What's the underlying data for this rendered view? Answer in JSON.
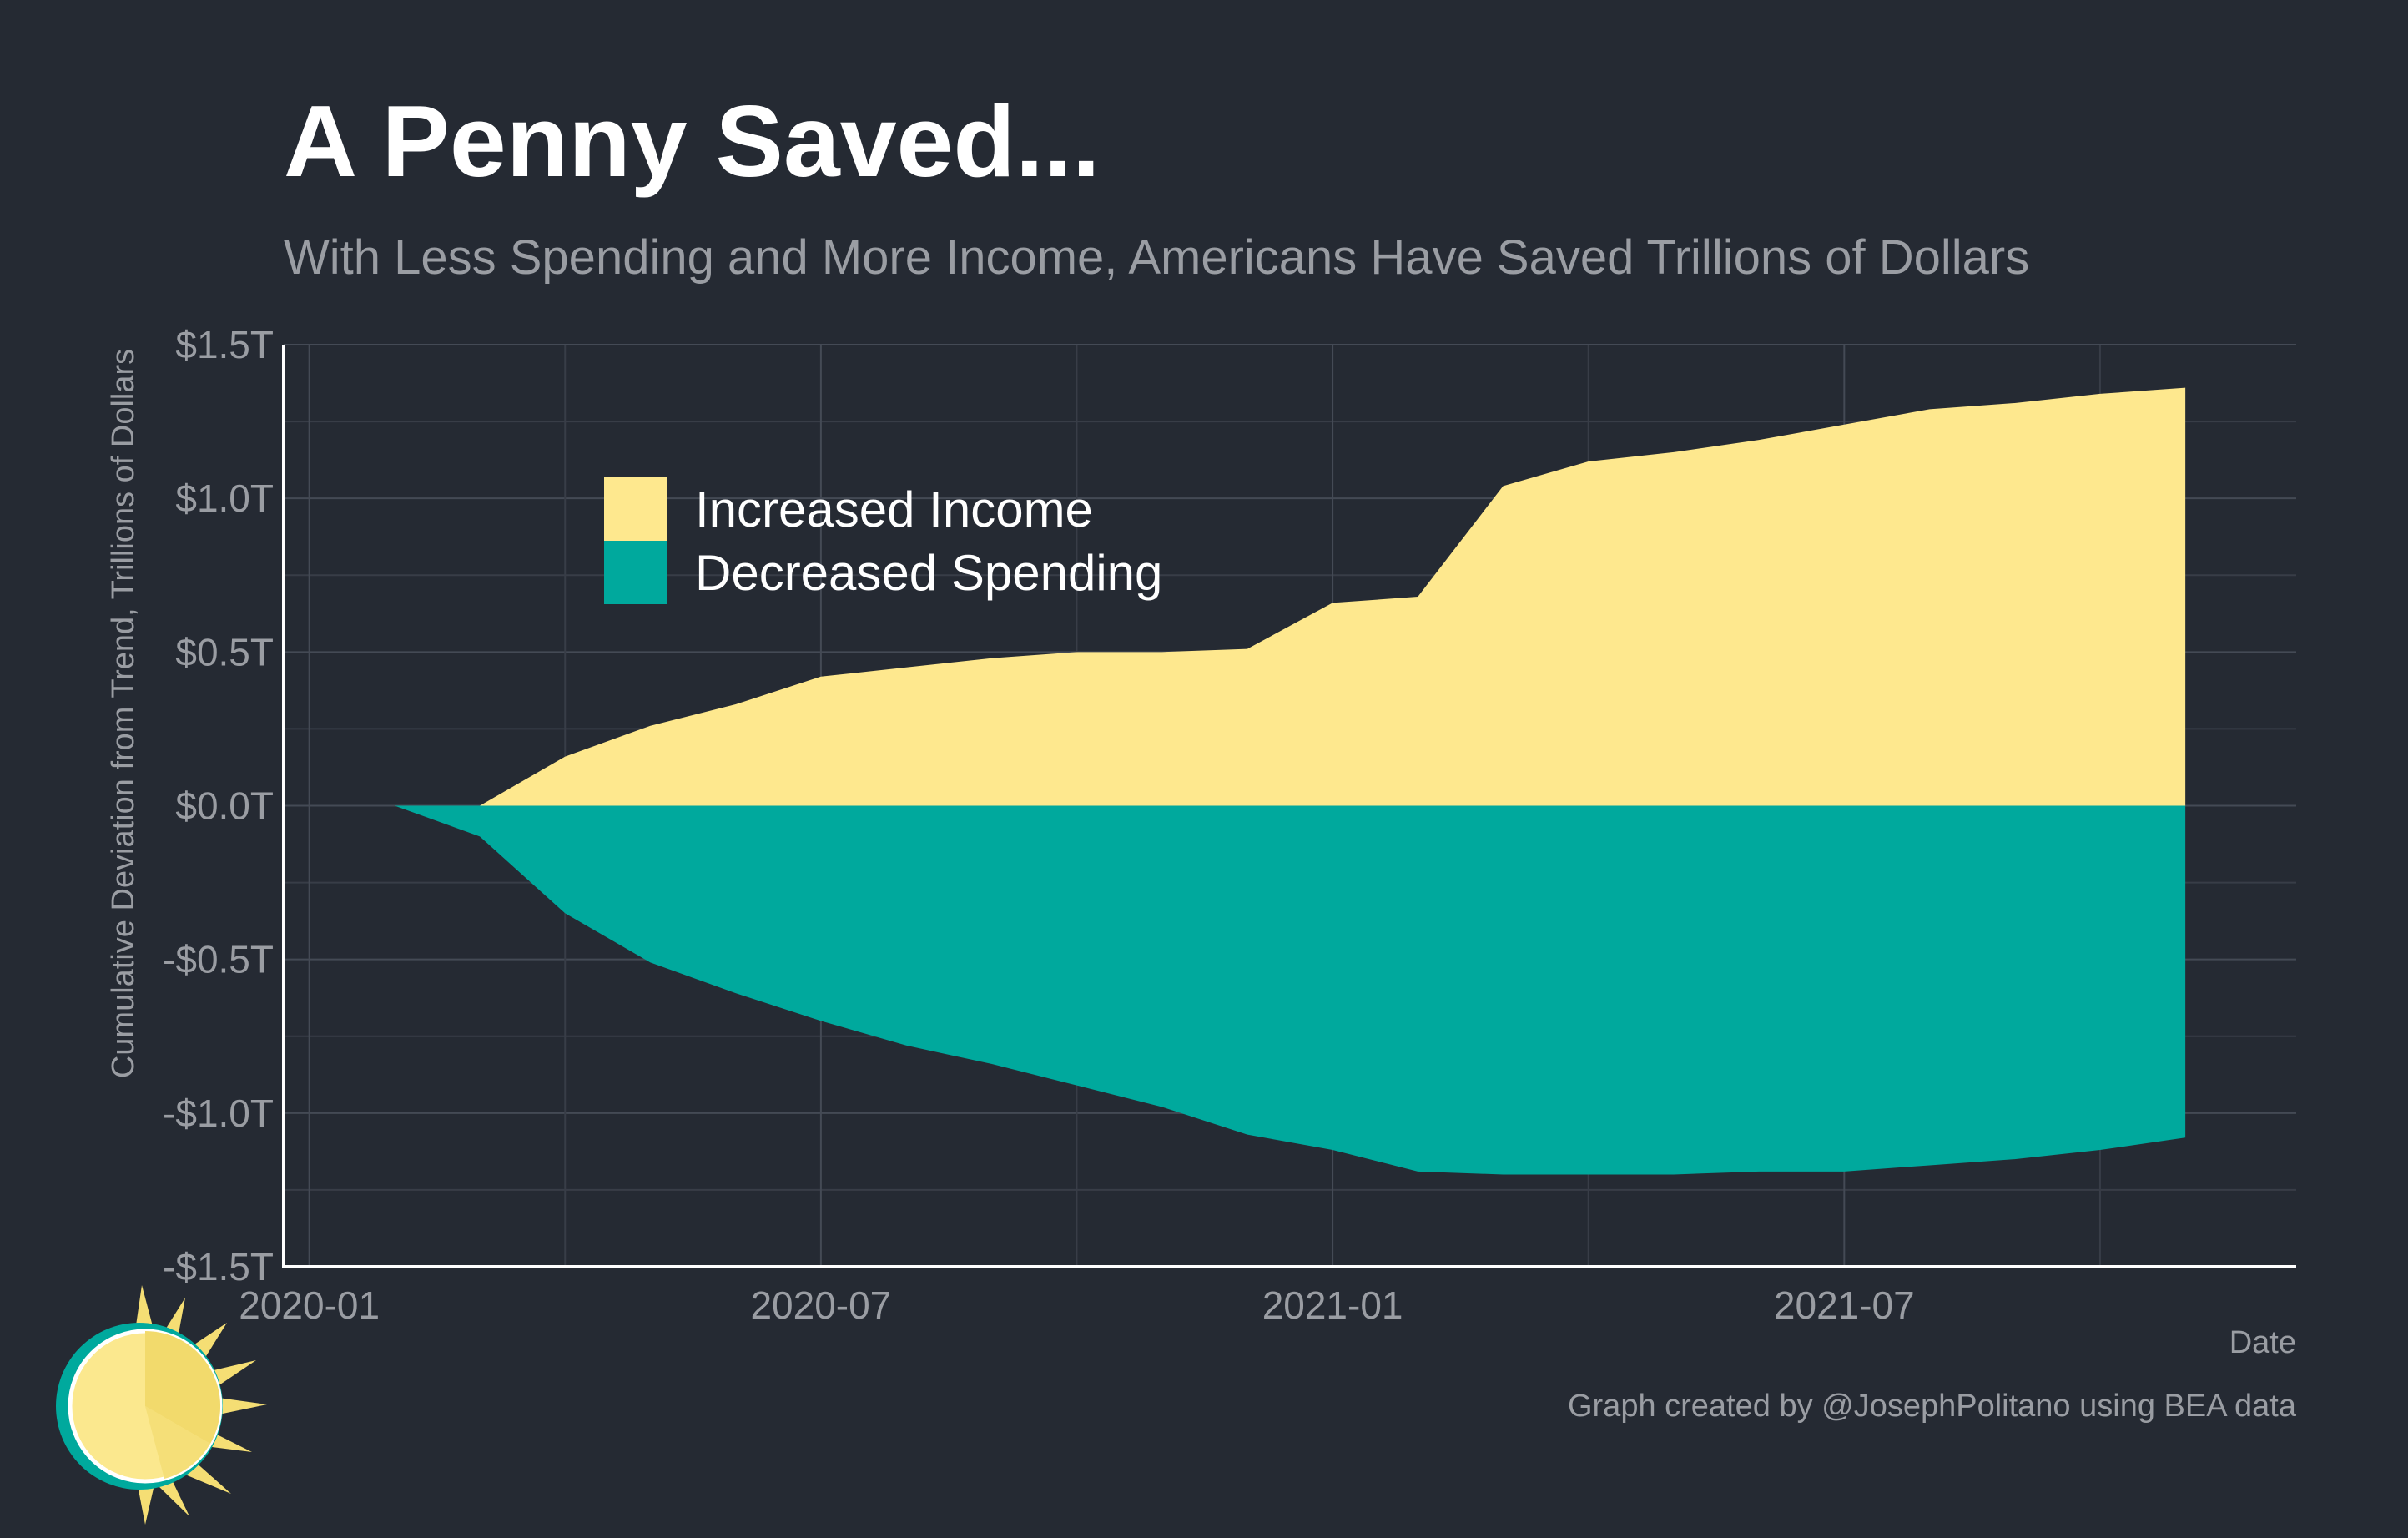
{
  "chart_data": {
    "type": "area",
    "title": "A Penny Saved...",
    "subtitle": "With Less Spending and More Income, Americans Have Saved Trillions of Dollars",
    "xlabel": "Date",
    "ylabel": "Cumulative Deviation from Trend, Trillions of Dollars",
    "caption": "Graph created by @JosephPolitano using BEA data",
    "ylim": [
      -1.5,
      1.5
    ],
    "yticks": [
      1.5,
      1.0,
      0.5,
      0.0,
      -0.5,
      -1.0,
      -1.5
    ],
    "ytick_labels": [
      "$1.5T",
      "$1.0T",
      "$0.5T",
      "$0.0T",
      "-$0.5T",
      "-$1.0T",
      "-$1.5T"
    ],
    "xticks": [
      0,
      6,
      12,
      18
    ],
    "xtick_labels": [
      "2020-01",
      "2020-07",
      "2021-01",
      "2021-07"
    ],
    "x_labels": [
      "2020-01",
      "2020-02",
      "2020-03",
      "2020-04",
      "2020-05",
      "2020-06",
      "2020-07",
      "2020-08",
      "2020-09",
      "2020-10",
      "2020-11",
      "2020-12",
      "2021-01",
      "2021-02",
      "2021-03",
      "2021-04",
      "2021-05",
      "2021-06",
      "2021-07",
      "2021-08",
      "2021-09",
      "2021-10",
      "2021-11"
    ],
    "x": [
      0,
      1,
      2,
      3,
      4,
      5,
      6,
      7,
      8,
      9,
      10,
      11,
      12,
      13,
      14,
      15,
      16,
      17,
      18,
      19,
      20,
      21,
      22
    ],
    "series": [
      {
        "name": "Increased Income",
        "color": "#fee88e",
        "values": [
          0.0,
          0.0,
          0.0,
          0.16,
          0.26,
          0.33,
          0.42,
          0.45,
          0.48,
          0.5,
          0.5,
          0.51,
          0.66,
          0.68,
          1.04,
          1.12,
          1.15,
          1.19,
          1.24,
          1.29,
          1.31,
          1.34,
          1.36
        ]
      },
      {
        "name": "Decreased Spending",
        "color": "#00a99d",
        "values": [
          0.0,
          0.0,
          -0.1,
          -0.35,
          -0.51,
          -0.61,
          -0.7,
          -0.78,
          -0.84,
          -0.91,
          -0.98,
          -1.07,
          -1.12,
          -1.19,
          -1.2,
          -1.2,
          -1.2,
          -1.19,
          -1.19,
          -1.17,
          -1.15,
          -1.12,
          -1.08
        ]
      }
    ],
    "legend": [
      "Increased Income",
      "Decreased Spending"
    ],
    "legend_position": "top-left",
    "grid": true
  }
}
